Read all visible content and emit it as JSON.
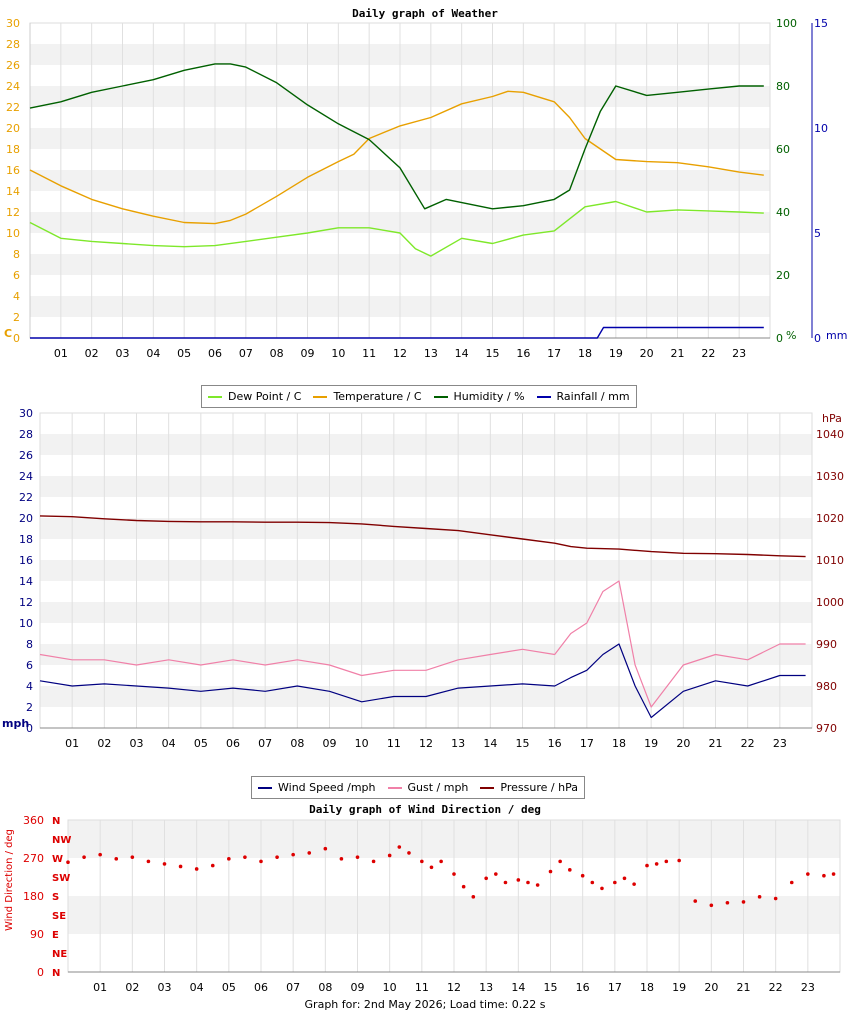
{
  "chart_data": [
    {
      "type": "line",
      "title": "Daily graph of Weather",
      "x_ticks": [
        "01",
        "02",
        "03",
        "04",
        "05",
        "06",
        "07",
        "08",
        "09",
        "10",
        "11",
        "12",
        "13",
        "14",
        "15",
        "16",
        "17",
        "18",
        "19",
        "20",
        "21",
        "22",
        "23"
      ],
      "axes": {
        "temperature": {
          "unit": "C",
          "ylim": [
            0,
            30
          ],
          "ticks": [
            "0",
            "2",
            "4",
            "6",
            "8",
            "10",
            "12",
            "14",
            "16",
            "18",
            "20",
            "22",
            "24",
            "26",
            "28",
            "30"
          ],
          "color": "#e8a000"
        },
        "humidity": {
          "unit": "%",
          "ylim": [
            0,
            100
          ],
          "ticks": [
            "0",
            "20",
            "40",
            "60",
            "80",
            "100"
          ],
          "color": "#006000"
        },
        "rainfall": {
          "unit": "mm",
          "ylim": [
            0,
            15
          ],
          "ticks": [
            "0",
            "5",
            "10",
            "15"
          ],
          "color": "#0000aa"
        }
      },
      "legend": {
        "placement": "bottom-center"
      },
      "series": [
        {
          "name": "Dew Point / C",
          "color": "#7ee82a",
          "axis": "temperature",
          "x": [
            0,
            1,
            2,
            3,
            4,
            5,
            6,
            7,
            8,
            9,
            10,
            11,
            12,
            12.5,
            13,
            14,
            15,
            16,
            17,
            18,
            19,
            20,
            21,
            22,
            23,
            23.8
          ],
          "y": [
            11,
            9.5,
            9.2,
            9.0,
            8.8,
            8.7,
            8.8,
            9.2,
            9.6,
            10,
            10.5,
            10.5,
            10,
            8.5,
            7.8,
            9.5,
            9,
            9.8,
            10.2,
            12.5,
            13,
            12,
            12.2,
            12.1,
            12,
            11.9
          ]
        },
        {
          "name": "Temperature / C",
          "color": "#e8a000",
          "axis": "temperature",
          "x": [
            0,
            1,
            2,
            3,
            4,
            5,
            6,
            6.5,
            7,
            8,
            9,
            10,
            10.5,
            11,
            12,
            13,
            14,
            15,
            15.5,
            16,
            17,
            17.5,
            18,
            19,
            20,
            21,
            22,
            23,
            23.8
          ],
          "y": [
            16,
            14.5,
            13.2,
            12.3,
            11.6,
            11,
            10.9,
            11.2,
            11.8,
            13.5,
            15.3,
            16.8,
            17.5,
            19,
            20.2,
            21,
            22.3,
            23,
            23.5,
            23.4,
            22.5,
            21,
            19,
            17,
            16.8,
            16.7,
            16.3,
            15.8,
            15.5
          ]
        },
        {
          "name": "Humidity / %",
          "color": "#006000",
          "axis": "humidity",
          "x": [
            0,
            1,
            2,
            3,
            4,
            5,
            6,
            6.5,
            7,
            8,
            9,
            10,
            11,
            12,
            12.8,
            13.5,
            14,
            15,
            16,
            17,
            17.5,
            18,
            18.5,
            19,
            20,
            21,
            22,
            23,
            23.8
          ],
          "y": [
            73,
            75,
            78,
            80,
            82,
            85,
            87,
            87,
            86,
            81,
            74,
            68,
            63,
            54,
            41,
            44,
            43,
            41,
            42,
            44,
            47,
            60,
            72,
            80,
            77,
            78,
            79,
            80,
            80
          ]
        },
        {
          "name": "Rainfall / mm",
          "color": "#0000aa",
          "axis": "rainfall",
          "x": [
            0,
            18.4,
            18.6,
            23.8
          ],
          "y": [
            0,
            0,
            0.5,
            0.5
          ]
        }
      ]
    },
    {
      "type": "line",
      "title": "",
      "x_ticks": [
        "01",
        "02",
        "03",
        "04",
        "05",
        "06",
        "07",
        "08",
        "09",
        "10",
        "11",
        "12",
        "13",
        "14",
        "15",
        "16",
        "17",
        "18",
        "19",
        "20",
        "21",
        "22",
        "23"
      ],
      "axes": {
        "speed": {
          "unit": "mph",
          "ylim": [
            0,
            30
          ],
          "ticks": [
            "0",
            "2",
            "4",
            "6",
            "8",
            "10",
            "12",
            "14",
            "16",
            "18",
            "20",
            "22",
            "24",
            "26",
            "28",
            "30"
          ],
          "color": "#000080"
        },
        "pressure": {
          "unit": "hPa",
          "ylim": [
            970,
            1045
          ],
          "ticks": [
            "970",
            "980",
            "990",
            "1000",
            "1010",
            "1020",
            "1030",
            "1040"
          ],
          "color": "#800000"
        }
      },
      "legend": {
        "placement": "bottom-center"
      },
      "series": [
        {
          "name": "Wind Speed /mph",
          "color": "#000080",
          "axis": "speed",
          "x": [
            0,
            1,
            2,
            3,
            4,
            5,
            6,
            7,
            8,
            9,
            10,
            11,
            12,
            13,
            14,
            15,
            16,
            16.5,
            17,
            17.5,
            18,
            18.5,
            19,
            20,
            21,
            22,
            23,
            23.8
          ],
          "y": [
            4.5,
            4,
            4.2,
            4,
            3.8,
            3.5,
            3.8,
            3.5,
            4,
            3.5,
            2.5,
            3,
            3,
            3.8,
            4,
            4.2,
            4,
            4.8,
            5.5,
            7,
            8,
            4,
            1,
            3.5,
            4.5,
            4,
            5,
            5
          ]
        },
        {
          "name": "Gust / mph",
          "color": "#f080a8",
          "axis": "speed",
          "x": [
            0,
            1,
            2,
            3,
            4,
            5,
            6,
            7,
            8,
            9,
            10,
            11,
            12,
            13,
            14,
            15,
            16,
            16.5,
            17,
            17.5,
            18,
            18.5,
            19,
            20,
            21,
            22,
            23,
            23.8
          ],
          "y": [
            7,
            6.5,
            6.5,
            6,
            6.5,
            6,
            6.5,
            6,
            6.5,
            6,
            5,
            5.5,
            5.5,
            6.5,
            7,
            7.5,
            7,
            9,
            10,
            13,
            14,
            6,
            2,
            6,
            7,
            6.5,
            8,
            8
          ]
        },
        {
          "name": "Pressure / hPa",
          "color": "#800000",
          "axis": "pressure",
          "x": [
            0,
            1,
            2,
            3,
            4,
            5,
            6,
            7,
            8,
            9,
            10,
            11,
            12,
            13,
            14,
            15,
            16,
            16.5,
            17,
            18,
            19,
            20,
            21,
            22,
            23,
            23.8
          ],
          "y": [
            1020.5,
            1020.3,
            1019.8,
            1019.4,
            1019.2,
            1019.1,
            1019.1,
            1019,
            1019,
            1018.9,
            1018.6,
            1018,
            1017.5,
            1017,
            1016,
            1015,
            1014,
            1013.2,
            1012.8,
            1012.6,
            1012,
            1011.6,
            1011.5,
            1011.3,
            1011,
            1010.8
          ]
        }
      ]
    },
    {
      "type": "scatter",
      "title": "Daily graph of Wind Direction / deg",
      "ylabel": "Wind Direction / deg",
      "ylim": [
        0,
        360
      ],
      "y_ticks": [
        "0",
        "90",
        "180",
        "270",
        "360"
      ],
      "compass_labels": [
        "N",
        "NE",
        "E",
        "SE",
        "S",
        "SW",
        "W",
        "NW",
        "N"
      ],
      "x_ticks": [
        "01",
        "02",
        "03",
        "04",
        "05",
        "06",
        "07",
        "08",
        "09",
        "10",
        "11",
        "12",
        "13",
        "14",
        "15",
        "16",
        "17",
        "18",
        "19",
        "20",
        "21",
        "22",
        "23"
      ],
      "series": [
        {
          "name": "",
          "color": "#dd0000",
          "x": [
            0,
            0.5,
            1,
            1.5,
            2,
            2.5,
            3,
            3.5,
            4,
            4.5,
            5,
            5.5,
            6,
            6.5,
            7,
            7.5,
            8,
            8.5,
            9,
            9.5,
            10,
            10.3,
            10.6,
            11,
            11.3,
            11.6,
            12,
            12.3,
            12.6,
            13,
            13.3,
            13.6,
            14,
            14.3,
            14.6,
            15,
            15.3,
            15.6,
            16,
            16.3,
            16.6,
            17,
            17.3,
            17.6,
            18,
            18.3,
            18.6,
            19,
            19.5,
            20,
            20.5,
            21,
            21.5,
            22,
            22.5,
            23,
            23.5,
            23.8
          ],
          "y": [
            260,
            272,
            278,
            268,
            272,
            262,
            256,
            250,
            244,
            252,
            268,
            272,
            262,
            272,
            278,
            282,
            292,
            268,
            272,
            262,
            276,
            296,
            282,
            262,
            248,
            262,
            232,
            202,
            178,
            222,
            232,
            212,
            218,
            212,
            206,
            238,
            262,
            242,
            228,
            212,
            198,
            212,
            222,
            208,
            252,
            256,
            262,
            264,
            168,
            158,
            164,
            166,
            178,
            174,
            212,
            232,
            228,
            232
          ]
        }
      ]
    }
  ],
  "labels": {
    "panel1_unit_temp": "C",
    "panel1_unit_hum": "%",
    "panel1_unit_rain": "mm",
    "panel2_unit_speed": "mph",
    "panel2_unit_pressure": "hPa"
  },
  "footer": "Graph for: 2nd May 2026; Load time: 0.22 s"
}
